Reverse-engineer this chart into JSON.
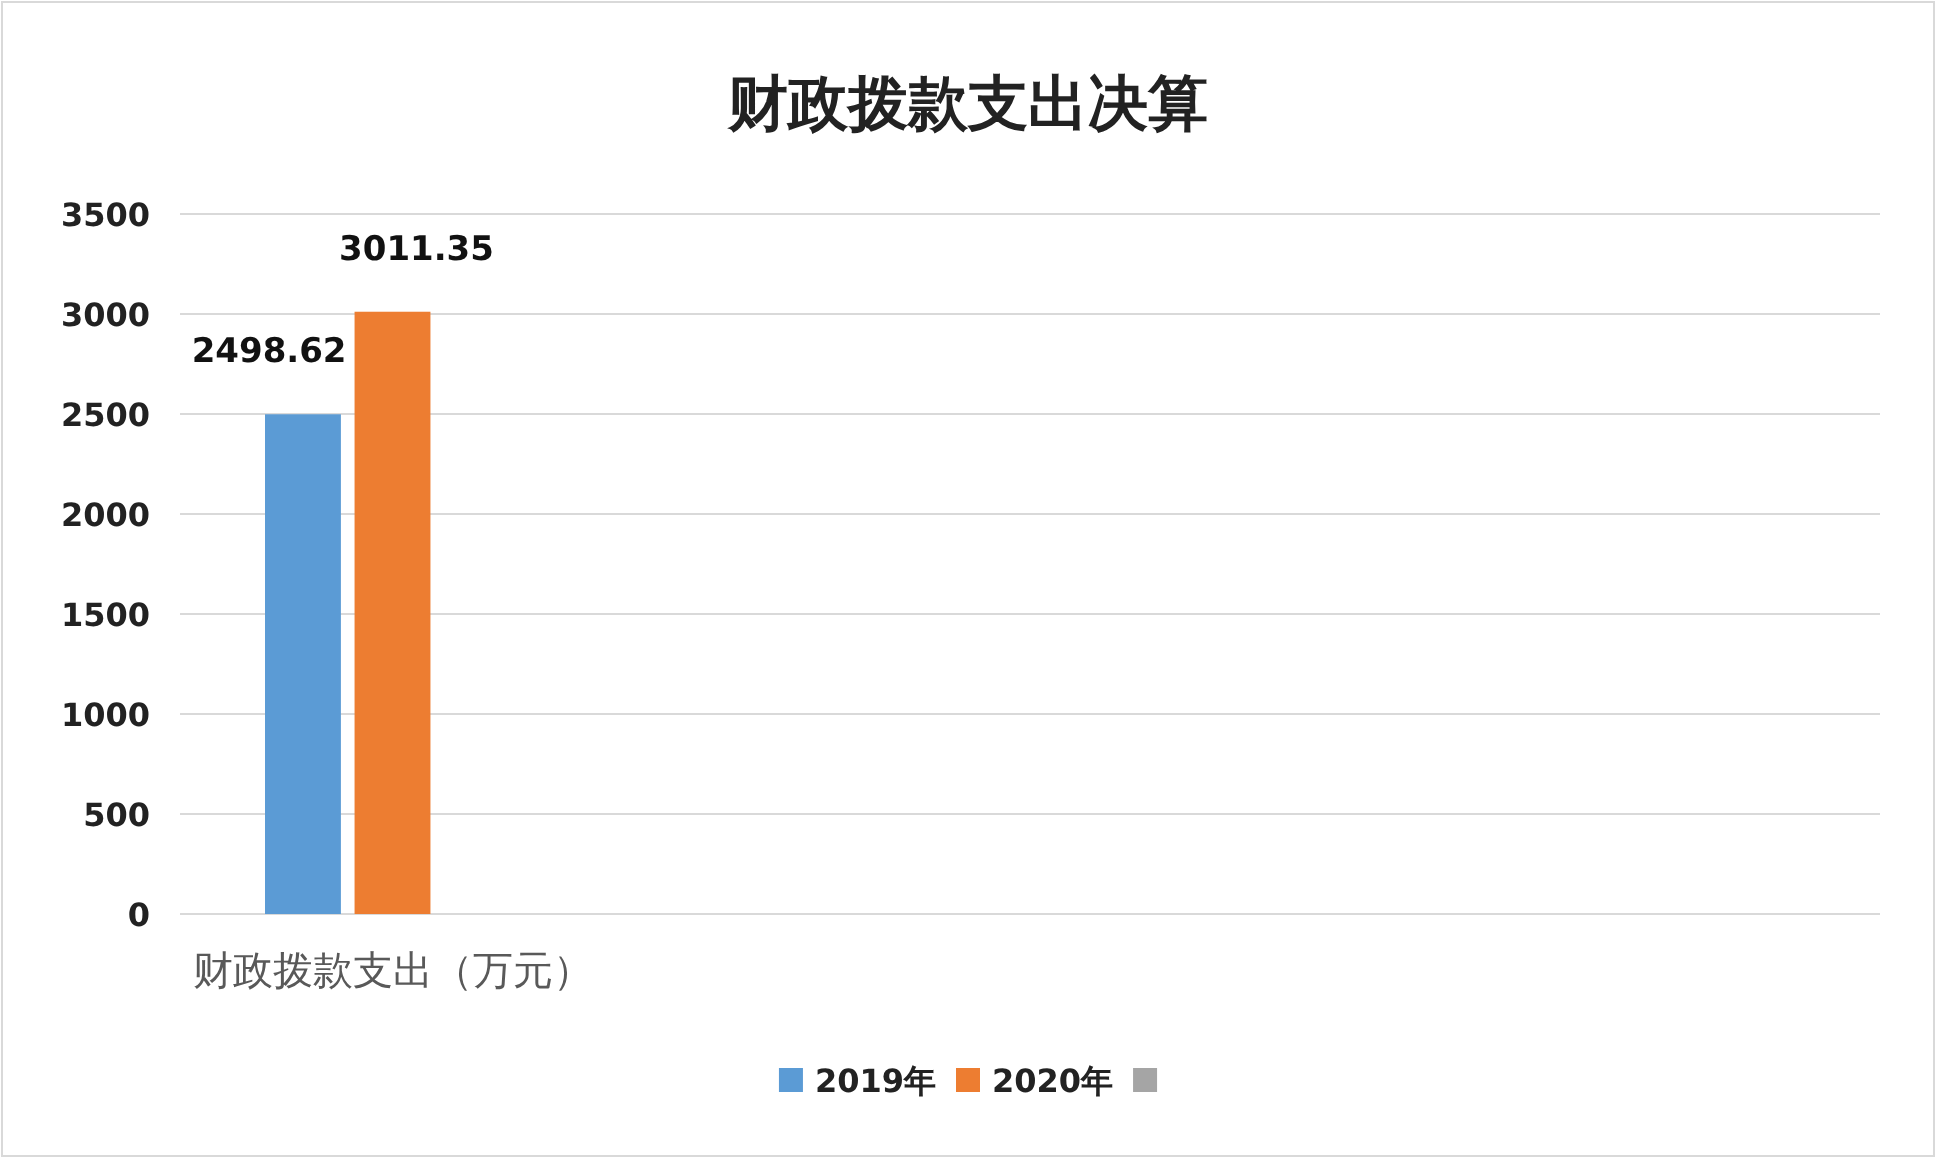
{
  "chart_data": {
    "type": "bar",
    "title": "财政拨款支出决算",
    "categories": [
      "财政拨款支出（万元）",
      null,
      null,
      null
    ],
    "series": [
      {
        "name": "2019年",
        "color": "#5b9bd5",
        "values": [
          2498.62,
          null,
          null,
          null
        ]
      },
      {
        "name": "2020年",
        "color": "#ed7d31",
        "values": [
          3011.35,
          null,
          null,
          null
        ]
      },
      {
        "color": "#a5a5a5",
        "values": [
          null,
          null,
          null,
          null
        ]
      }
    ],
    "ylim": [
      0,
      3500
    ],
    "yticks": [
      0,
      500,
      1000,
      1500,
      2000,
      2500,
      3000,
      3500
    ],
    "grid": "y",
    "legend": "bottom",
    "data_labels": true
  }
}
